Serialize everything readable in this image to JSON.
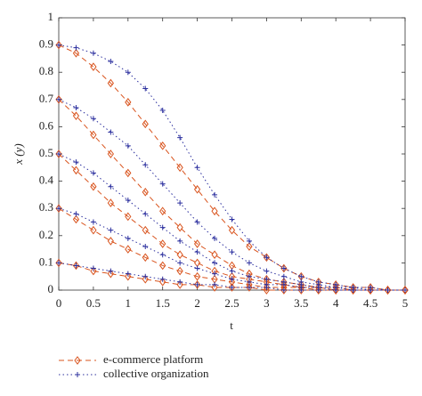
{
  "chart_data": {
    "type": "line",
    "xlabel": "t",
    "ylabel": "x (y)",
    "x": [
      0,
      0.25,
      0.5,
      0.75,
      1,
      1.25,
      1.5,
      1.75,
      2,
      2.25,
      2.5,
      2.75,
      3,
      3.25,
      3.5,
      3.75,
      4,
      4.25,
      4.5,
      4.75,
      5
    ],
    "xlim": [
      0,
      5
    ],
    "xticks": [
      0,
      0.5,
      1,
      1.5,
      2,
      2.5,
      3,
      3.5,
      4,
      4.5,
      5
    ],
    "ylim": [
      0,
      1
    ],
    "yticks": [
      0,
      0.1,
      0.2,
      0.3,
      0.4,
      0.5,
      0.6,
      0.7,
      0.8,
      0.9,
      1
    ],
    "legend": "bottom-left",
    "series": [
      {
        "name": "e-commerce platform",
        "color": "#d9541e",
        "dash": "dashed",
        "marker": "diamond",
        "values": [
          [
            0.9,
            0.87,
            0.82,
            0.76,
            0.69,
            0.61,
            0.53,
            0.45,
            0.37,
            0.29,
            0.22,
            0.16,
            0.12,
            0.08,
            0.05,
            0.03,
            0.02,
            0.01,
            0.01,
            0,
            0
          ],
          [
            0.7,
            0.64,
            0.57,
            0.5,
            0.43,
            0.36,
            0.29,
            0.23,
            0.17,
            0.13,
            0.09,
            0.06,
            0.04,
            0.03,
            0.02,
            0.01,
            0.01,
            0,
            0,
            0,
            0
          ],
          [
            0.5,
            0.44,
            0.38,
            0.32,
            0.27,
            0.22,
            0.17,
            0.13,
            0.1,
            0.07,
            0.05,
            0.04,
            0.03,
            0.02,
            0.01,
            0.01,
            0,
            0,
            0,
            0,
            0
          ],
          [
            0.3,
            0.26,
            0.22,
            0.18,
            0.15,
            0.12,
            0.09,
            0.07,
            0.05,
            0.04,
            0.03,
            0.02,
            0.01,
            0.01,
            0.01,
            0,
            0,
            0,
            0,
            0,
            0
          ],
          [
            0.1,
            0.09,
            0.07,
            0.06,
            0.05,
            0.04,
            0.03,
            0.02,
            0.02,
            0.01,
            0.01,
            0.01,
            0,
            0,
            0,
            0,
            0,
            0,
            0,
            0,
            0
          ]
        ]
      },
      {
        "name": "collective organization",
        "color": "#2b2f9e",
        "dash": "dotted",
        "marker": "plus",
        "values": [
          [
            0.9,
            0.89,
            0.87,
            0.84,
            0.8,
            0.74,
            0.66,
            0.56,
            0.45,
            0.35,
            0.26,
            0.18,
            0.12,
            0.08,
            0.05,
            0.03,
            0.02,
            0.01,
            0.01,
            0,
            0
          ],
          [
            0.7,
            0.67,
            0.63,
            0.58,
            0.53,
            0.46,
            0.39,
            0.32,
            0.25,
            0.19,
            0.14,
            0.1,
            0.07,
            0.05,
            0.03,
            0.02,
            0.01,
            0.01,
            0,
            0,
            0
          ],
          [
            0.5,
            0.47,
            0.43,
            0.38,
            0.33,
            0.28,
            0.23,
            0.18,
            0.14,
            0.1,
            0.07,
            0.05,
            0.04,
            0.03,
            0.02,
            0.01,
            0.01,
            0,
            0,
            0,
            0
          ],
          [
            0.3,
            0.28,
            0.25,
            0.22,
            0.19,
            0.16,
            0.13,
            0.1,
            0.08,
            0.06,
            0.04,
            0.03,
            0.02,
            0.02,
            0.01,
            0.01,
            0,
            0,
            0,
            0,
            0
          ],
          [
            0.1,
            0.09,
            0.08,
            0.07,
            0.06,
            0.05,
            0.04,
            0.03,
            0.02,
            0.02,
            0.01,
            0.01,
            0.01,
            0,
            0,
            0,
            0,
            0,
            0,
            0,
            0
          ]
        ]
      }
    ]
  }
}
